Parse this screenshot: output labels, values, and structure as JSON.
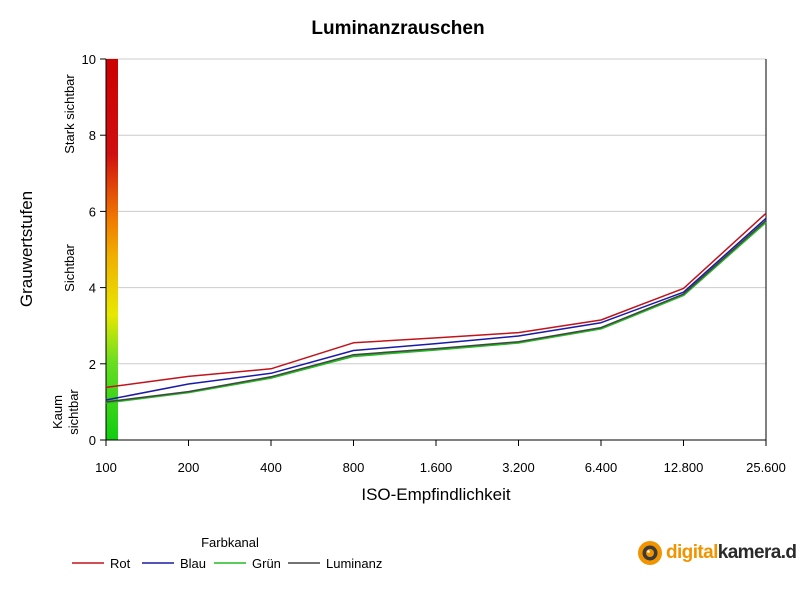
{
  "chart_data": {
    "type": "line",
    "title": "Luminanzrauschen",
    "xlabel": "ISO-Empfindlichkeit",
    "ylabel": "Grauwertstufen",
    "categories": [
      "100",
      "200",
      "400",
      "800",
      "1.600",
      "3.200",
      "6.400",
      "12.800",
      "25.600"
    ],
    "ylim": [
      0,
      10
    ],
    "yticks": [
      "0",
      "2",
      "4",
      "6",
      "8",
      "10"
    ],
    "grid": true,
    "series": [
      {
        "name": "Rot",
        "color": "#c0141c",
        "values": [
          1.38,
          1.67,
          1.87,
          2.55,
          2.68,
          2.82,
          3.15,
          3.98,
          5.95
        ]
      },
      {
        "name": "Blau",
        "color": "#1a1aa6",
        "values": [
          1.05,
          1.47,
          1.75,
          2.35,
          2.53,
          2.73,
          3.08,
          3.88,
          5.82
        ]
      },
      {
        "name": "Grün",
        "color": "#22bb22",
        "values": [
          0.98,
          1.25,
          1.63,
          2.2,
          2.37,
          2.55,
          2.92,
          3.8,
          5.72
        ]
      },
      {
        "name": "Luminanz",
        "color": "#444444",
        "values": [
          1.0,
          1.27,
          1.66,
          2.24,
          2.4,
          2.58,
          2.95,
          3.83,
          5.76
        ]
      }
    ],
    "visibility_bands": [
      "Stark sichtbar",
      "Sichtbar",
      "Kaum sichtbar"
    ],
    "legend_title": "Farbkanal",
    "legend_position": "bottom-left"
  },
  "colors": {
    "scale_top": "#cc0000",
    "scale_mid_orange": "#f07a00",
    "scale_mid_yellow": "#e8e800",
    "scale_bottom": "#11cc11",
    "grid": "#cccccc",
    "axis": "#000000"
  },
  "brand": {
    "icon": "camera-lens-logo",
    "text_accent": "digital",
    "text_main": "kamera.de"
  }
}
